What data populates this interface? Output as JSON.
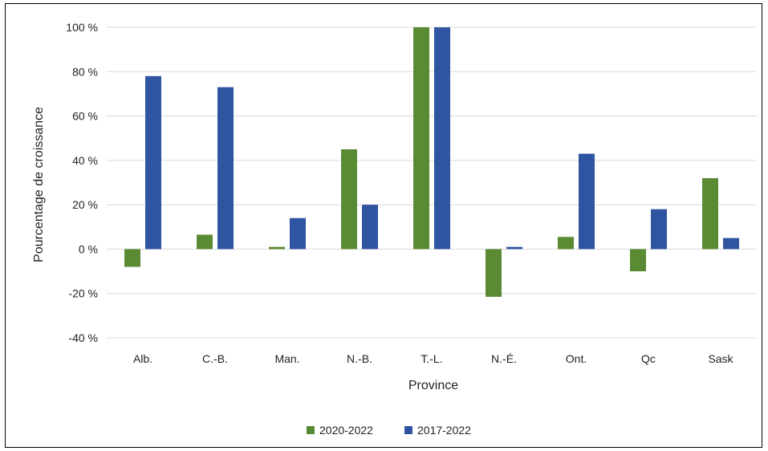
{
  "chart_data": {
    "type": "bar",
    "title": "",
    "xlabel": "Province",
    "ylabel": "Pourcentage de croissance",
    "categories": [
      "Alb.",
      "C.-B.",
      "Man.",
      "N.-B.",
      "T.-L.",
      "N.-É.",
      "Ont.",
      "Qc",
      "Sask"
    ],
    "series": [
      {
        "name": "2020-2022",
        "color": "#5b8a35",
        "values": [
          -8,
          6.5,
          1,
          45,
          100,
          -21.5,
          5.5,
          -10,
          32
        ]
      },
      {
        "name": "2017-2022",
        "color": "#2f55a0",
        "values": [
          78,
          73,
          14,
          20,
          100,
          1,
          43,
          18,
          5
        ]
      }
    ],
    "ylim": [
      -40,
      100
    ],
    "yticks": [
      -40,
      -20,
      0,
      20,
      40,
      60,
      80,
      100
    ],
    "ytick_labels": [
      "-40 %",
      "-20 %",
      "0 %",
      "20 %",
      "40 %",
      "60 %",
      "80 %",
      "100 %"
    ],
    "grid": true,
    "legend_position": "bottom"
  }
}
